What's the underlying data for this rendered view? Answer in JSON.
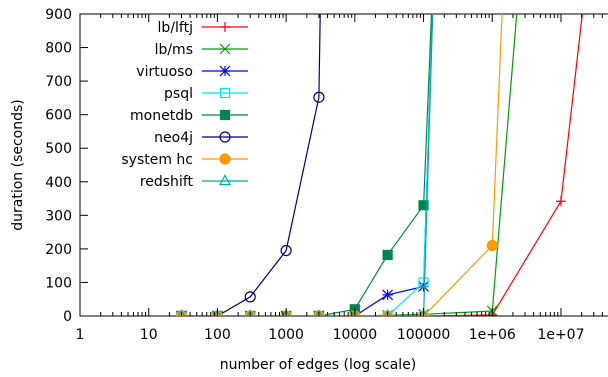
{
  "chart_data": {
    "type": "line",
    "xscale": "log",
    "xlabel": "number of edges (log scale)",
    "ylabel": "duration (seconds)",
    "xlim": [
      1,
      50000000
    ],
    "ylim": [
      0,
      900
    ],
    "grid": false,
    "legend_position": "top-left",
    "x_ticks": [
      {
        "value": 1,
        "label": "1"
      },
      {
        "value": 10,
        "label": "10"
      },
      {
        "value": 100,
        "label": "100"
      },
      {
        "value": 1000,
        "label": "1000"
      },
      {
        "value": 10000,
        "label": "10000"
      },
      {
        "value": 100000,
        "label": "100000"
      },
      {
        "value": 1000000,
        "label": "1e+06"
      },
      {
        "value": 10000000,
        "label": "1e+07"
      }
    ],
    "y_ticks": [
      {
        "value": 0,
        "label": "0"
      },
      {
        "value": 100,
        "label": "100"
      },
      {
        "value": 200,
        "label": "200"
      },
      {
        "value": 300,
        "label": "300"
      },
      {
        "value": 400,
        "label": "400"
      },
      {
        "value": 500,
        "label": "500"
      },
      {
        "value": 600,
        "label": "600"
      },
      {
        "value": 700,
        "label": "700"
      },
      {
        "value": 800,
        "label": "800"
      },
      {
        "value": 900,
        "label": "900"
      }
    ],
    "series": [
      {
        "name": "lb/lftj",
        "color": "#ff0000",
        "marker": "plus",
        "x": [
          30,
          100,
          300,
          1000,
          3000,
          10000,
          30000,
          100000,
          1000000,
          10000000,
          30000000
        ],
        "y": [
          0,
          0,
          0,
          0,
          0,
          0,
          0,
          0,
          3,
          342,
          1200
        ]
      },
      {
        "name": "lb/ms",
        "color": "#009e00",
        "marker": "cross",
        "x": [
          30,
          100,
          300,
          1000,
          3000,
          10000,
          30000,
          100000,
          1000000,
          3000000
        ],
        "y": [
          0,
          0,
          0,
          0,
          0,
          0,
          2,
          5,
          15,
          1200
        ]
      },
      {
        "name": "virtuoso",
        "color": "#0000ff",
        "marker": "star",
        "x": [
          30,
          100,
          300,
          1000,
          3000,
          10000,
          30000,
          100000,
          150000
        ],
        "y": [
          0,
          0,
          0,
          0,
          0,
          0,
          63,
          88,
          1200
        ]
      },
      {
        "name": "psql",
        "color": "#00e5ff",
        "marker": "square-open",
        "x": [
          30,
          100,
          300,
          1000,
          3000,
          10000,
          30000,
          100000,
          150000
        ],
        "y": [
          0,
          0,
          0,
          0,
          0,
          0,
          0,
          100,
          1200
        ]
      },
      {
        "name": "monetdb",
        "color": "#00864d",
        "marker": "square-filled",
        "x": [
          30,
          100,
          300,
          1000,
          3000,
          10000,
          30000,
          100000,
          150000
        ],
        "y": [
          0,
          0,
          0,
          0,
          0,
          20,
          182,
          330,
          1200
        ]
      },
      {
        "name": "neo4j",
        "color": "#000080",
        "marker": "circle-open",
        "x": [
          30,
          100,
          300,
          1000,
          3000,
          3300
        ],
        "y": [
          0,
          0,
          57,
          195,
          652,
          1200
        ]
      },
      {
        "name": "system hc",
        "color": "#ff9900",
        "marker": "circle-filled",
        "x": [
          30,
          100,
          300,
          1000,
          3000,
          10000,
          30000,
          100000,
          1000000,
          1600000
        ],
        "y": [
          0,
          0,
          0,
          0,
          0,
          0,
          0,
          0,
          210,
          1200
        ]
      },
      {
        "name": "redshift",
        "color": "#00aaaa",
        "marker": "triangle-open",
        "x": [
          30,
          100,
          300,
          1000,
          3000,
          10000,
          30000,
          100000,
          150000
        ],
        "y": [
          0,
          0,
          0,
          0,
          0,
          0,
          0,
          0,
          1200
        ]
      }
    ]
  }
}
